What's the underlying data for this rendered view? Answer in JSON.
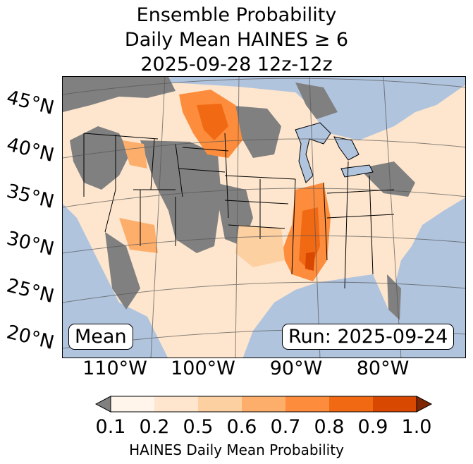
{
  "title": {
    "line1": "Ensemble Probability",
    "line2": "Daily Mean HAINES ≥ 6",
    "line3": "2025-09-28 12z-12z"
  },
  "map": {
    "lat_labels": [
      "45°N",
      "40°N",
      "35°N",
      "30°N",
      "25°N",
      "20°N"
    ],
    "lon_labels": [
      "110°W",
      "100°W",
      "90°W",
      "80°W"
    ],
    "mean_label": "Mean",
    "run_label": "Run: 2025-09-24"
  },
  "colorbar": {
    "ticks": [
      "0.1",
      "0.2",
      "0.5",
      "0.6",
      "0.7",
      "0.8",
      "0.9",
      "1.0"
    ],
    "label": "HAINES Daily Mean Probability",
    "colors": [
      "#fff5eb",
      "#fee6ce",
      "#fdd0a2",
      "#fdae6b",
      "#fd8d3c",
      "#f16913",
      "#d94801",
      "#a63603"
    ],
    "under_color": "#808080",
    "over_color": "#7f2704"
  },
  "colors": {
    "ocean": "#b0c4de",
    "no_data_gray": "#808080",
    "land_low": "#fee6ce"
  }
}
